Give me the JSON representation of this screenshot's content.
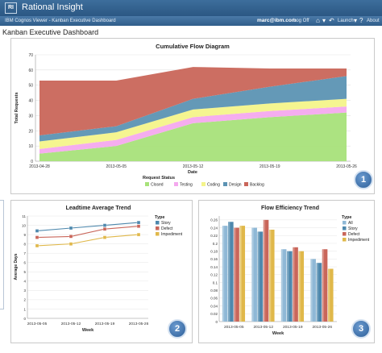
{
  "app": {
    "title": "Rational Insight",
    "logo_text": "RI",
    "breadcrumb": "IBM Cognos Viewer - Kanban Executive Dashboard",
    "user": "marc@ibm.com",
    "logoff_label": "Log Off",
    "launch_label": "Launch",
    "about_label": "About",
    "home_icon": "home-icon",
    "nav_icon": "arrow-left-icon"
  },
  "page_title": "Kanban Executive Dashboard",
  "badges": [
    "1",
    "2",
    "3"
  ],
  "colors": {
    "closed": "#a8e27a",
    "testing": "#f4a9ee",
    "coding": "#f4f48a",
    "design": "#5c93b3",
    "backlog": "#c9665a",
    "story": "#4e88ad",
    "defect": "#c9665a",
    "impediment": "#e0b84a",
    "all": "#8fb8d6"
  },
  "chart_data": [
    {
      "type": "area",
      "title": "Cumulative Flow Diagram",
      "xlabel": "Date",
      "ylabel": "Total Requests",
      "ylim": [
        0,
        70
      ],
      "yticks": [
        0,
        10,
        20,
        30,
        40,
        50,
        60,
        70
      ],
      "x": [
        "2013-04-28",
        "2013-05-05",
        "2013-05-12",
        "2013-05-19",
        "2013-05-26"
      ],
      "x_ticks": [
        "2013-04-28",
        "2013-05-05",
        "2013-05-12",
        "2013-05-19",
        "2013-05-26"
      ],
      "legend_title": "Request Status",
      "legend_position": "bottom",
      "grid": true,
      "series": [
        {
          "name": "Closed",
          "values": [
            5,
            10,
            25,
            29,
            32
          ]
        },
        {
          "name": "Testing",
          "values": [
            3,
            4,
            4,
            4,
            4
          ]
        },
        {
          "name": "Coding",
          "values": [
            5,
            5,
            5,
            5,
            5
          ]
        },
        {
          "name": "Design",
          "values": [
            4,
            4,
            7,
            11,
            15
          ]
        },
        {
          "name": "Backlog",
          "values": [
            36,
            30,
            21,
            12,
            5
          ]
        }
      ]
    },
    {
      "type": "line",
      "title": "Leadtime Average Trend",
      "xlabel": "Week",
      "ylabel": "Average Days",
      "ylim": [
        0,
        11
      ],
      "yticks": [
        0,
        1,
        2,
        3,
        4,
        5,
        6,
        7,
        8,
        9,
        10,
        11
      ],
      "x": [
        "2013-05-05",
        "2013-05-12",
        "2013-05-19",
        "2013-05-26"
      ],
      "legend_title": "Type",
      "legend_position": "right",
      "grid": true,
      "series": [
        {
          "name": "Story",
          "values": [
            9.4,
            9.7,
            10.0,
            10.3
          ]
        },
        {
          "name": "Defect",
          "values": [
            8.7,
            8.8,
            9.6,
            9.9
          ]
        },
        {
          "name": "Impediment",
          "values": [
            7.8,
            8.0,
            8.7,
            9.0
          ]
        }
      ]
    },
    {
      "type": "bar",
      "title": "Flow Efficiency Trend",
      "ylim": [
        0,
        0.27
      ],
      "yticks": [
        "0",
        "0.02",
        "0.04",
        "0.06",
        "0.08",
        "0.1",
        "0.12",
        "0.14",
        "0.16",
        "0.18",
        "0.2",
        "0.22",
        "0.24",
        "0.26"
      ],
      "categories": [
        "2013-05-05",
        "2013-05-12",
        "2013-05-19",
        "2013-05-26"
      ],
      "xlabel": "Week",
      "legend_title": "Type",
      "legend_position": "right",
      "grid": true,
      "series": [
        {
          "name": "All",
          "values": [
            0.245,
            0.24,
            0.185,
            0.16
          ]
        },
        {
          "name": "Story",
          "values": [
            0.255,
            0.23,
            0.18,
            0.15
          ]
        },
        {
          "name": "Defect",
          "values": [
            0.24,
            0.26,
            0.19,
            0.185
          ]
        },
        {
          "name": "Impediment",
          "values": [
            0.245,
            0.235,
            0.18,
            0.135
          ]
        }
      ]
    }
  ]
}
